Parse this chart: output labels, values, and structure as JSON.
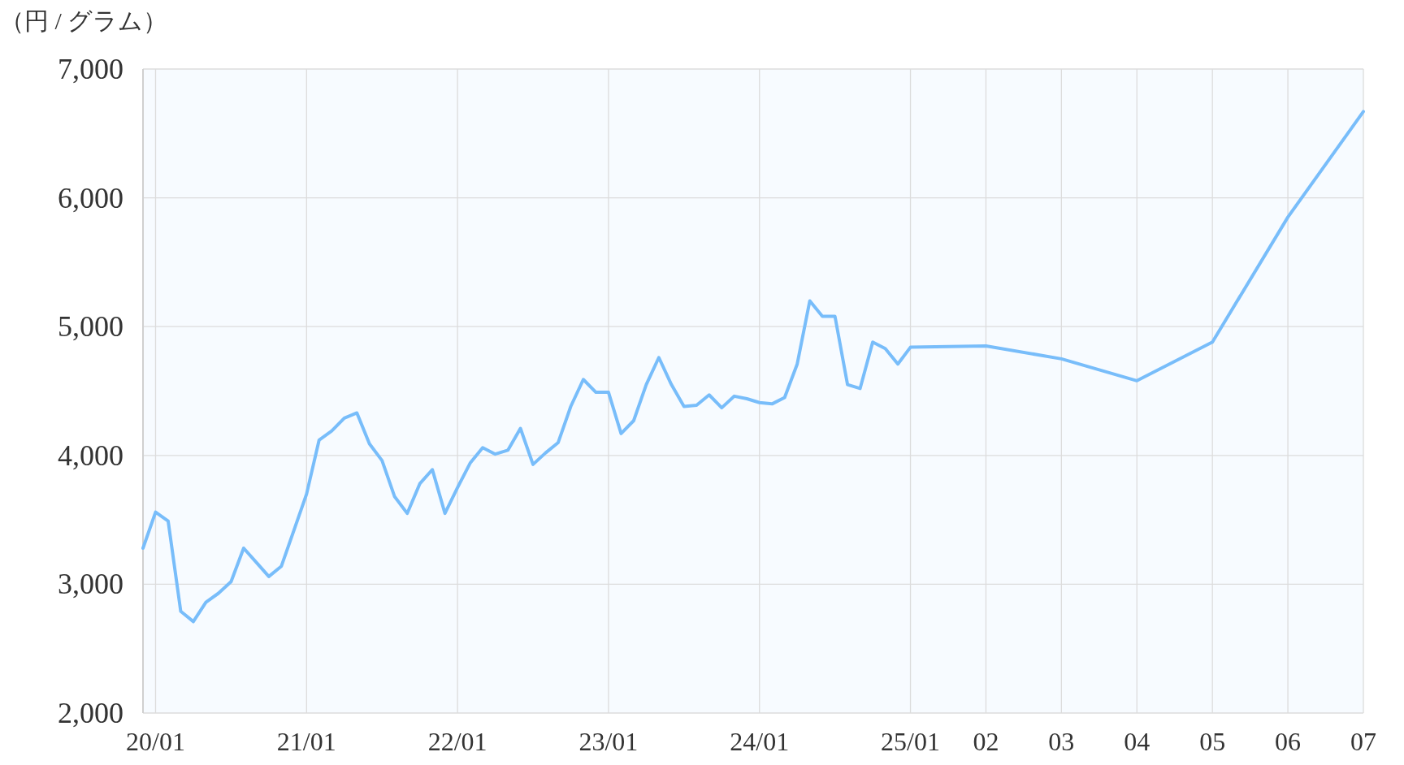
{
  "chart_data": {
    "type": "line",
    "ylabel": "（円 / グラム）",
    "categories": [
      null,
      "20/01",
      null,
      null,
      null,
      null,
      null,
      null,
      null,
      null,
      null,
      null,
      null,
      "21/01",
      null,
      null,
      null,
      null,
      null,
      null,
      null,
      null,
      null,
      null,
      null,
      "22/01",
      null,
      null,
      null,
      null,
      null,
      null,
      null,
      null,
      null,
      null,
      null,
      "23/01",
      null,
      null,
      null,
      null,
      null,
      null,
      null,
      null,
      null,
      null,
      null,
      "24/01",
      null,
      null,
      null,
      null,
      null,
      null,
      null,
      null,
      null,
      null,
      null,
      "25/01",
      null,
      null,
      null,
      null,
      null,
      "02",
      null,
      null,
      null,
      null,
      null,
      "03",
      null,
      null,
      null,
      null,
      null,
      "04",
      null,
      null,
      null,
      null,
      null,
      "05",
      null,
      null,
      null,
      null,
      null,
      "06",
      null,
      null,
      null,
      null,
      null,
      "07"
    ],
    "series": [
      {
        "color": "#78bdfa",
        "values": [
          3280,
          3560,
          3490,
          2790,
          2710,
          2860,
          2930,
          3020,
          3280,
          3170,
          3060,
          3140,
          3420,
          3700,
          4120,
          4190,
          4290,
          4330,
          4090,
          3960,
          3680,
          3550,
          3780,
          3890,
          3550,
          3750,
          3940,
          4060,
          4010,
          4040,
          4210,
          3930,
          4020,
          4100,
          4380,
          4590,
          4490,
          4490,
          4170,
          4270,
          4550,
          4760,
          4550,
          4380,
          4390,
          4470,
          4370,
          4460,
          4440,
          4410,
          4400,
          4450,
          4710,
          5200,
          5080,
          5080,
          4550,
          4520,
          4880,
          4830,
          4710,
          4840,
          null,
          null,
          null,
          null,
          null,
          4850,
          null,
          null,
          null,
          null,
          null,
          4750,
          null,
          null,
          null,
          null,
          null,
          4580,
          null,
          null,
          null,
          null,
          null,
          4880,
          null,
          null,
          null,
          null,
          null,
          5850,
          null,
          null,
          null,
          null,
          null,
          6670
        ]
      }
    ],
    "ylim": [
      2000,
      7000
    ],
    "yticks": [
      {
        "value": 2000,
        "label": "2,000"
      },
      {
        "value": 3000,
        "label": "3,000"
      },
      {
        "value": 4000,
        "label": "4,000"
      },
      {
        "value": 5000,
        "label": "5,000"
      },
      {
        "value": 6000,
        "label": "6,000"
      },
      {
        "value": 7000,
        "label": "7,000"
      }
    ],
    "grid": true
  }
}
